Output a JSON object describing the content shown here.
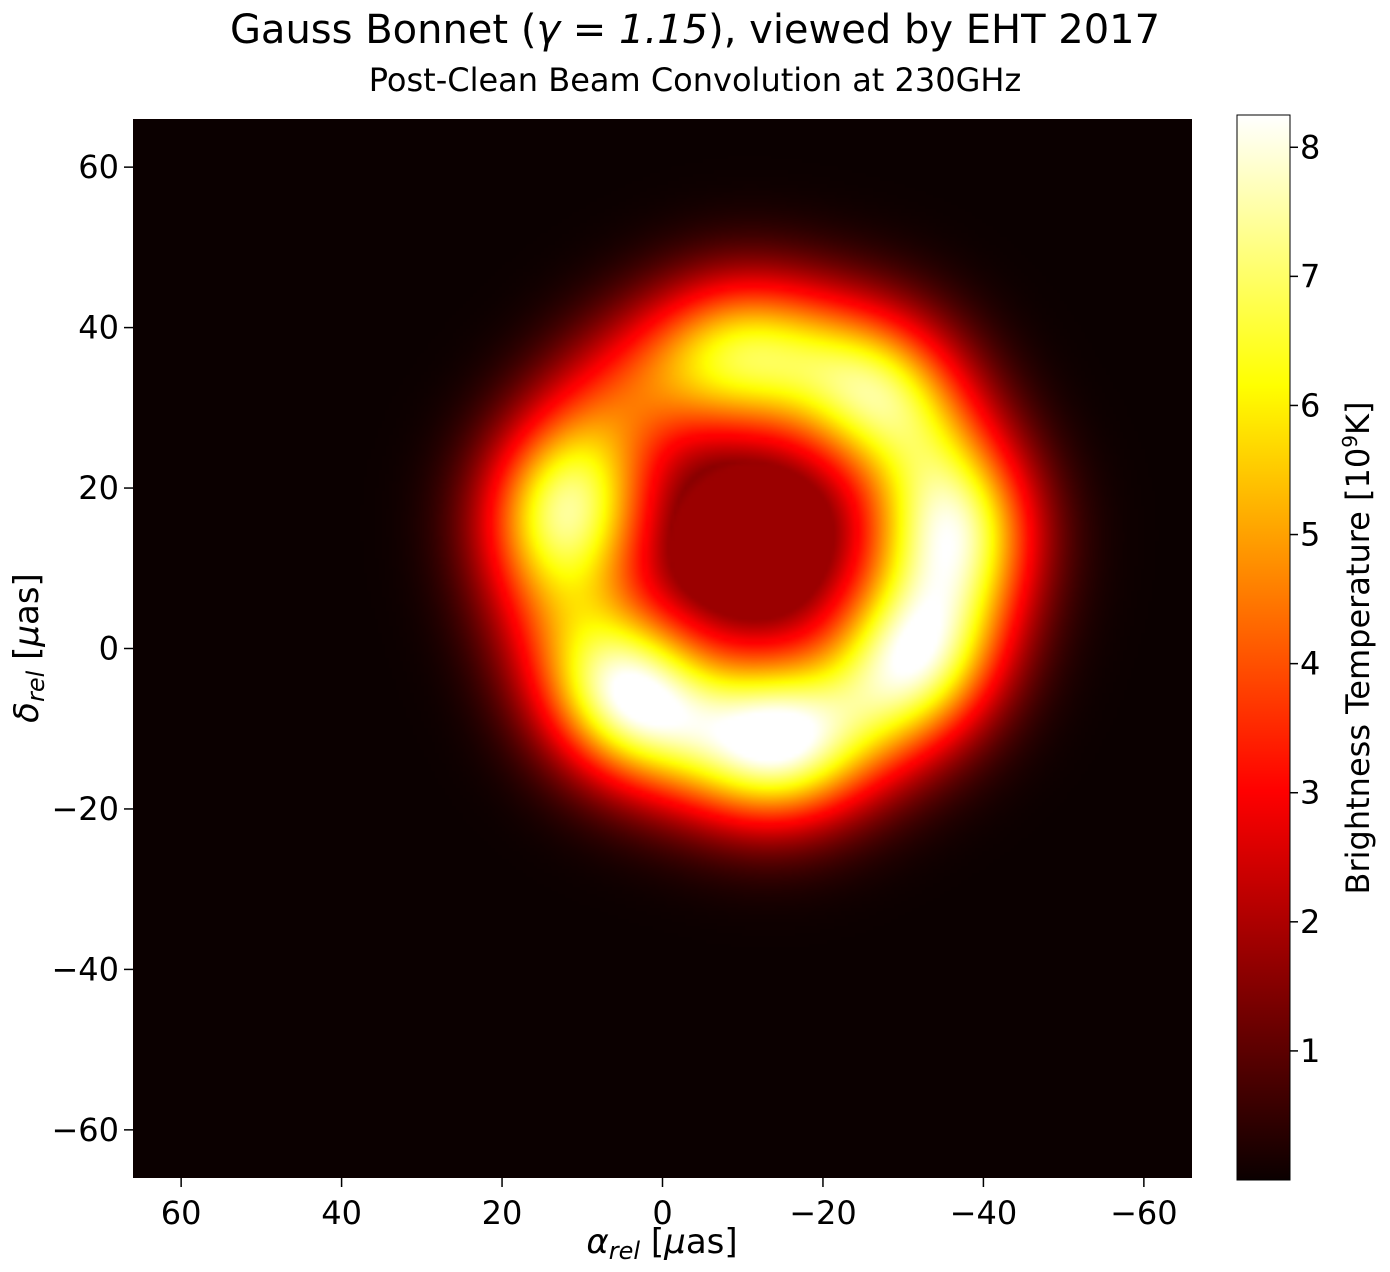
{
  "chart_data": {
    "type": "heatmap",
    "title_prefix": "Gauss Bonnet (",
    "title_gamma": "γ = 1.15",
    "title_suffix": "), viewed by EHT 2017",
    "subtitle": "Post-Clean Beam Convolution at 230GHz",
    "xlabel": "α_rel [μas]",
    "ylabel": "δ_rel [μas]",
    "xlim": [
      66,
      -66
    ],
    "ylim": [
      -66,
      66
    ],
    "x_ticks": [
      60,
      40,
      20,
      0,
      -20,
      -40,
      -60
    ],
    "y_ticks": [
      60,
      40,
      20,
      0,
      -20,
      -40,
      -60
    ],
    "x_tick_labels": [
      "60",
      "40",
      "20",
      "0",
      "−20",
      "−40",
      "−60"
    ],
    "y_tick_labels": [
      "60",
      "40",
      "20",
      "0",
      "−20",
      "−40",
      "−60"
    ],
    "colorbar": {
      "label": "Brightness Temperature [10⁹K]",
      "range": [
        0,
        8.25
      ],
      "ticks": [
        1,
        2,
        3,
        4,
        5,
        6,
        7,
        8
      ],
      "tick_labels": [
        "1",
        "2",
        "3",
        "4",
        "5",
        "6",
        "7",
        "8"
      ],
      "colormap": "hot"
    },
    "ring": {
      "center_alpha": -12,
      "center_delta": 12,
      "radius": 25,
      "width": 9.5,
      "peak_value": 8.2,
      "interior_value": 1.7,
      "hotspots": [
        {
          "alpha": -14,
          "delta": -10,
          "value": 8.2
        },
        {
          "alpha": 3,
          "delta": -5,
          "value": 7.9
        },
        {
          "alpha": -30,
          "delta": 0,
          "value": 7.4
        },
        {
          "alpha": -35,
          "delta": 15,
          "value": 6.5
        },
        {
          "alpha": 11,
          "delta": 17,
          "value": 6.2
        },
        {
          "alpha": -10,
          "delta": 35,
          "value": 4.8
        },
        {
          "alpha": -26,
          "delta": 31,
          "value": 5.6
        }
      ]
    }
  }
}
